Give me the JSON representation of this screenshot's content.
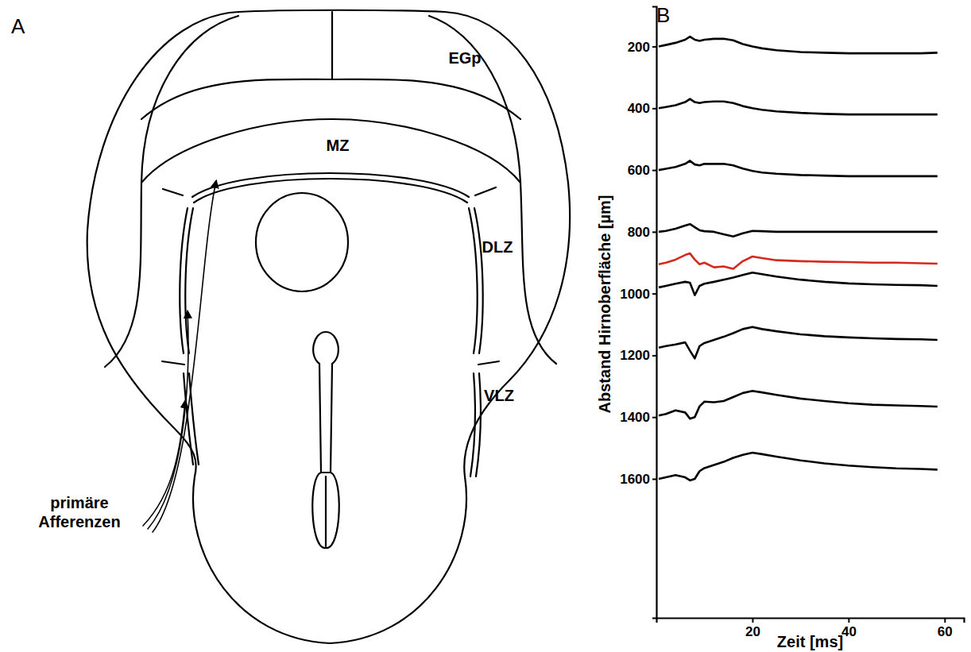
{
  "panel_labels": [
    "A",
    "B"
  ],
  "diagram": {
    "region_labels": [
      "EGp",
      "MZ",
      "DLZ",
      "VLZ"
    ],
    "afferent_label": "primäre Afferenzen"
  },
  "chart_data": {
    "type": "line",
    "x_label": "Zeit [ms]",
    "y_label": "Abstand Hirnoberfläche [µm]",
    "x": [
      0.5,
      2,
      4,
      6,
      7,
      8,
      9,
      10,
      12,
      14,
      16,
      18,
      20,
      22,
      25,
      30,
      35,
      40,
      45,
      50,
      55,
      58.5
    ],
    "series": [
      {
        "color": "#000000",
        "values": [
          200,
          195,
          188,
          178,
          168,
          178,
          182,
          178,
          175,
          175,
          180,
          192,
          200,
          206,
          212,
          218,
          220,
          222,
          222,
          222,
          222,
          220
        ]
      },
      {
        "color": "#000000",
        "values": [
          400,
          396,
          390,
          380,
          370,
          380,
          383,
          380,
          378,
          378,
          383,
          393,
          400,
          405,
          410,
          415,
          418,
          420,
          420,
          420,
          420,
          420
        ]
      },
      {
        "color": "#000000",
        "values": [
          600,
          596,
          590,
          580,
          570,
          582,
          585,
          580,
          580,
          580,
          585,
          595,
          603,
          608,
          612,
          616,
          618,
          620,
          620,
          620,
          620,
          620
        ]
      },
      {
        "color": "#000000",
        "values": [
          800,
          797,
          790,
          780,
          775,
          785,
          795,
          798,
          800,
          808,
          815,
          805,
          797,
          798,
          800,
          800,
          800,
          800,
          800,
          800,
          800,
          800
        ]
      },
      {
        "color": "#d42a1e",
        "values": [
          905,
          900,
          890,
          875,
          870,
          890,
          905,
          900,
          915,
          912,
          920,
          895,
          880,
          885,
          892,
          895,
          897,
          898,
          900,
          900,
          902,
          903
        ]
      },
      {
        "color": "#000000",
        "values": [
          980,
          975,
          968,
          962,
          965,
          1005,
          975,
          968,
          962,
          955,
          948,
          940,
          932,
          937,
          945,
          955,
          962,
          967,
          970,
          972,
          973,
          975
        ]
      },
      {
        "color": "#000000",
        "values": [
          1175,
          1170,
          1165,
          1158,
          1185,
          1210,
          1170,
          1160,
          1150,
          1140,
          1128,
          1115,
          1108,
          1115,
          1122,
          1132,
          1138,
          1142,
          1145,
          1147,
          1148,
          1150
        ]
      },
      {
        "color": "#000000",
        "values": [
          1395,
          1390,
          1378,
          1385,
          1405,
          1400,
          1365,
          1350,
          1352,
          1348,
          1335,
          1322,
          1315,
          1320,
          1328,
          1340,
          1348,
          1355,
          1360,
          1362,
          1364,
          1366
        ]
      },
      {
        "color": "#000000",
        "values": [
          1600,
          1595,
          1588,
          1595,
          1605,
          1600,
          1575,
          1565,
          1555,
          1545,
          1532,
          1522,
          1515,
          1520,
          1528,
          1540,
          1550,
          1557,
          1562,
          1566,
          1568,
          1570
        ]
      }
    ],
    "xlim": [
      0,
      64
    ],
    "ylim": [
      2050,
      70
    ],
    "xticks": [
      20,
      40,
      60
    ],
    "yticks": [
      200,
      400,
      600,
      800,
      1000,
      1200,
      1400,
      1600
    ]
  }
}
